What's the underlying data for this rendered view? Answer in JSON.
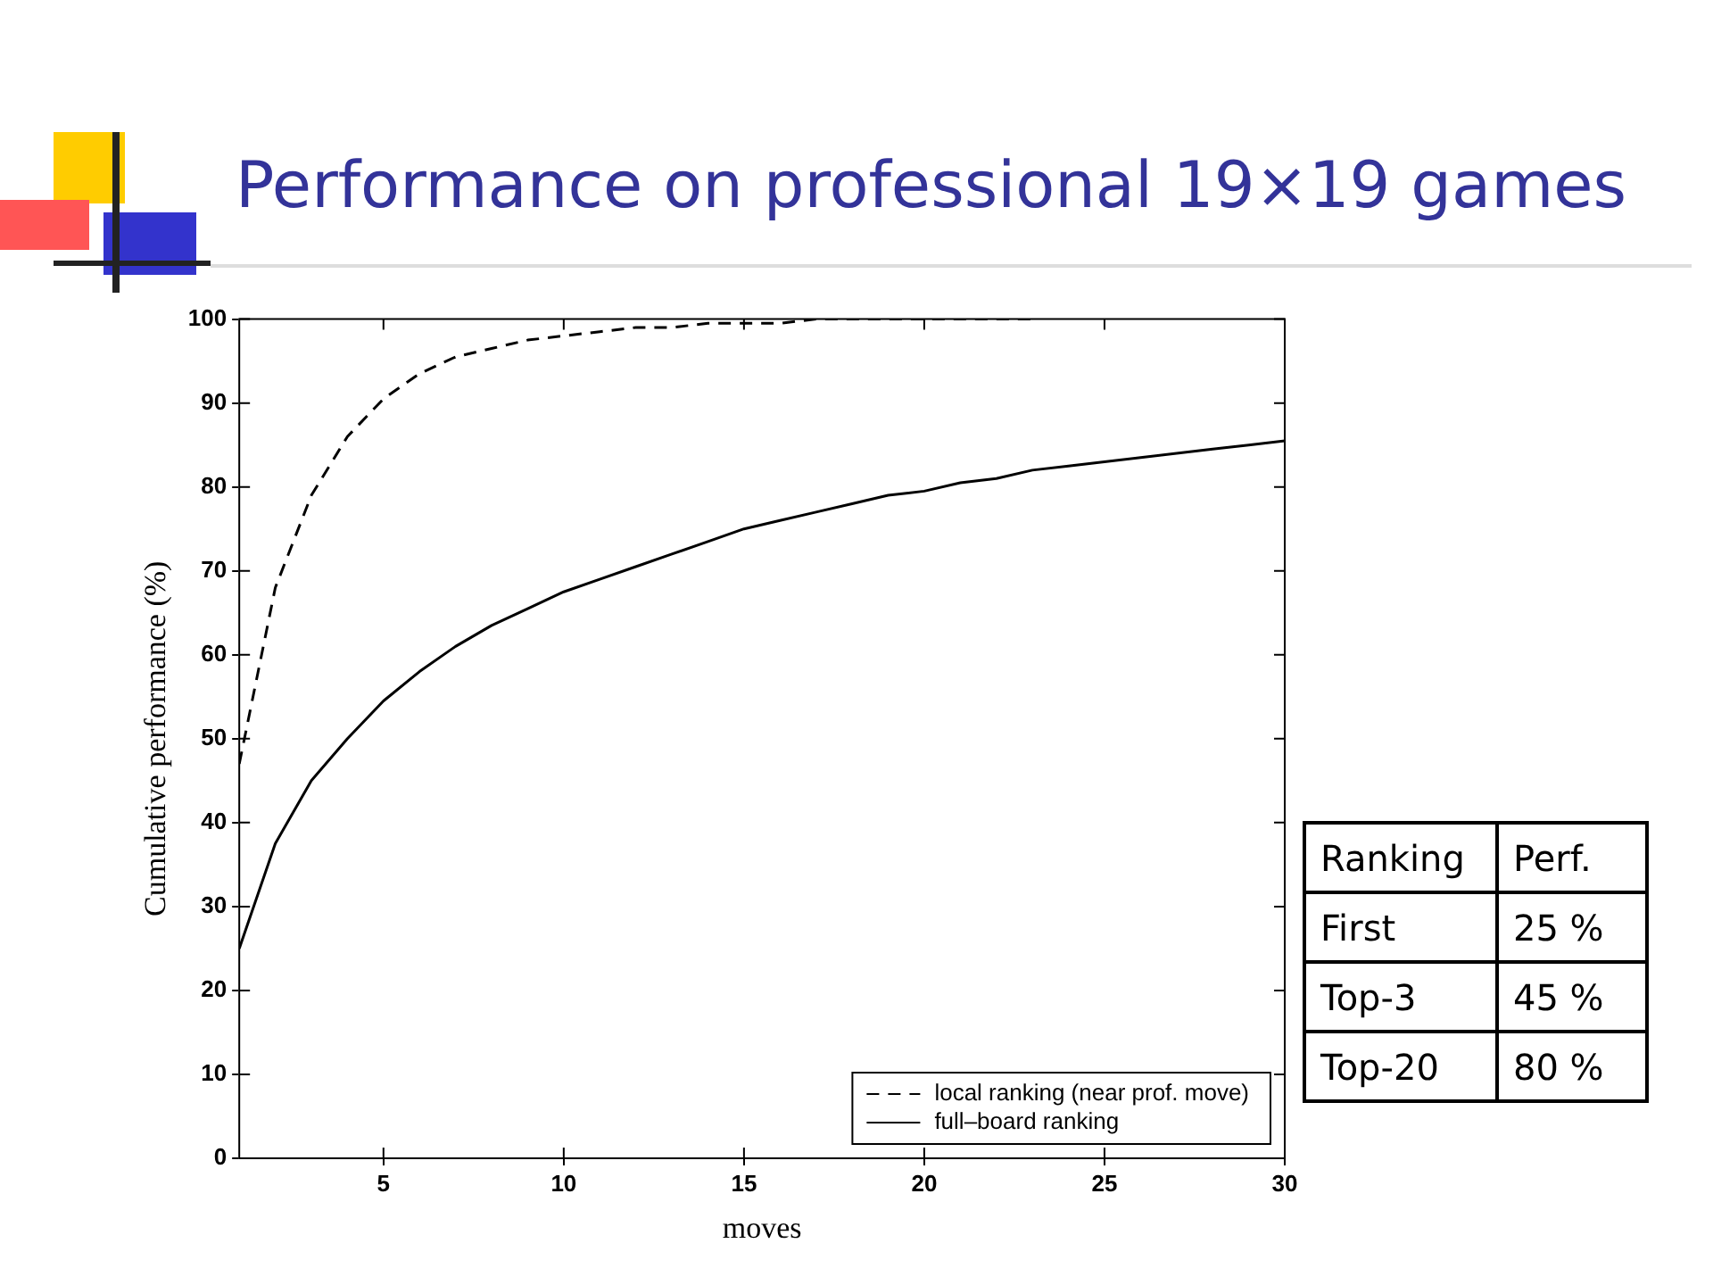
{
  "chart_data": {
    "type": "line",
    "title": "Performance on professional 19×19 games",
    "xlabel": "moves",
    "ylabel": "Cumulative performance (%)",
    "xlim": [
      1,
      30
    ],
    "xticks": [
      5,
      10,
      15,
      20,
      25,
      30
    ],
    "ylim": [
      0,
      100
    ],
    "yticks": [
      0,
      10,
      20,
      30,
      40,
      50,
      60,
      70,
      80,
      90,
      100
    ],
    "grid": false,
    "legend": "bottom right",
    "marker": "none",
    "series": [
      {
        "name": "local ranking (near prof. move)",
        "color": "#000000",
        "line_style": "dashed",
        "x": [
          1,
          2,
          3,
          4,
          5,
          6,
          7,
          8,
          9,
          10,
          11,
          12,
          13,
          14,
          15,
          16,
          17,
          18,
          19,
          20,
          21,
          22,
          23
        ],
        "values": [
          47,
          68,
          79,
          86,
          90.5,
          93.5,
          95.5,
          96.5,
          97.5,
          98,
          98.5,
          99,
          99,
          99.5,
          99.5,
          99.5,
          100,
          100,
          100,
          100,
          100,
          100,
          100
        ]
      },
      {
        "name": "full–board ranking",
        "color": "#000000",
        "line_style": "solid",
        "x": [
          1,
          2,
          3,
          4,
          5,
          6,
          7,
          8,
          9,
          10,
          11,
          12,
          13,
          14,
          15,
          16,
          17,
          18,
          19,
          20,
          21,
          22,
          23,
          24,
          25,
          26,
          27,
          28,
          29,
          30
        ],
        "values": [
          25,
          37.5,
          45,
          50,
          54.5,
          58,
          61,
          63.5,
          65.5,
          67.5,
          69,
          70.5,
          72,
          73.5,
          75,
          76,
          77,
          78,
          79,
          79.5,
          80.5,
          81,
          82,
          82.5,
          83,
          83.5,
          84,
          84.5,
          85,
          85.5
        ]
      }
    ],
    "annotations": [
      "Ranking",
      "Perf.",
      "First",
      "25 %",
      "Top-3",
      "45 %",
      "Top-20",
      "80 %"
    ]
  }
}
